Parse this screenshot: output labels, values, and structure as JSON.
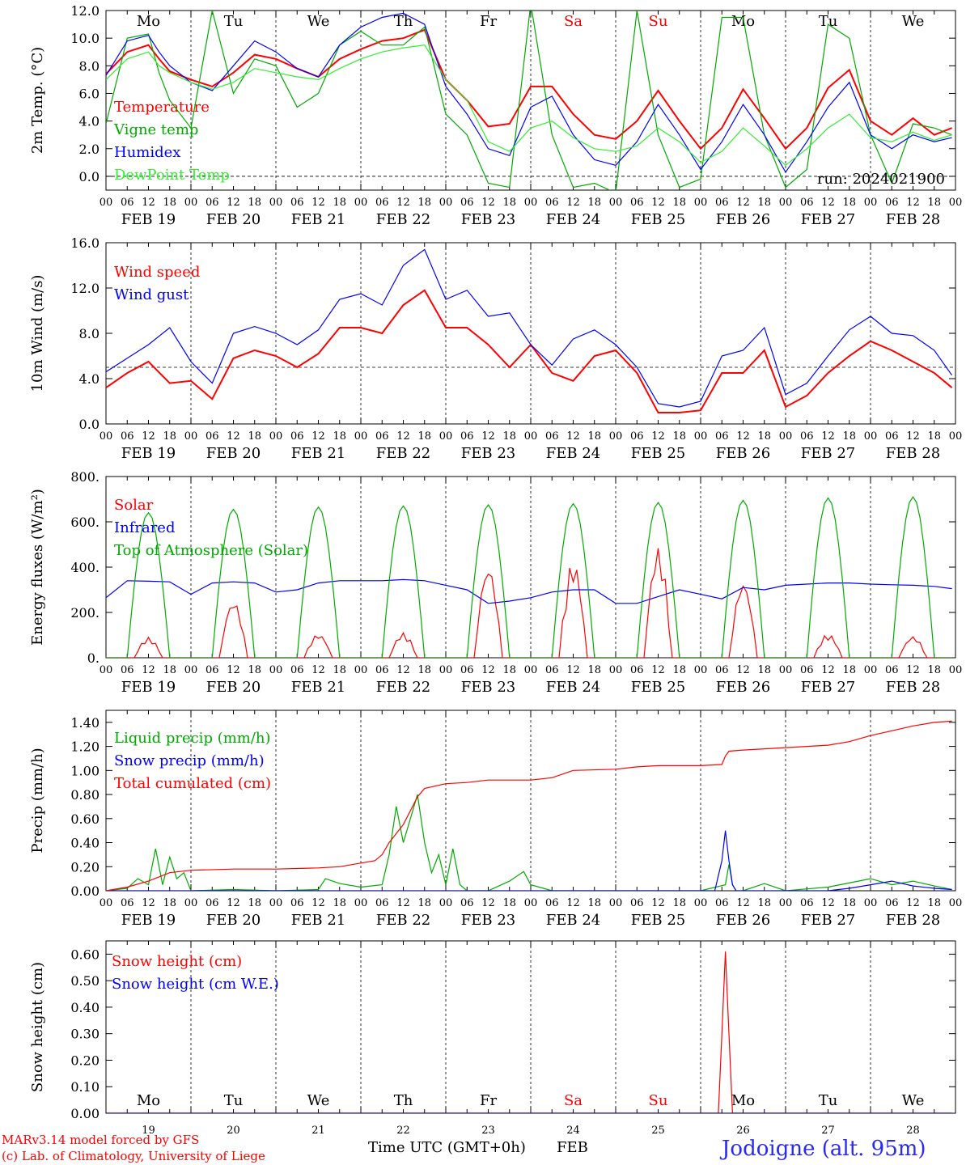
{
  "weekdays": [
    "Mo",
    "Tu",
    "We",
    "Th",
    "Fr",
    "Sa",
    "Su",
    "Mo",
    "Tu",
    "We"
  ],
  "weekday_colors": [
    "#000000",
    "#000000",
    "#000000",
    "#000000",
    "#000000",
    "#ff0000",
    "#ff0000",
    "#000000",
    "#000000",
    "#000000"
  ],
  "date_labels": [
    "FEB 19",
    "FEB 20",
    "FEB 21",
    "FEB 22",
    "FEB 23",
    "FEB 24",
    "FEB 25",
    "FEB 26",
    "FEB 27",
    "FEB 28"
  ],
  "day_numbers": [
    "19",
    "20",
    "21",
    "22",
    "23",
    "24",
    "25",
    "26",
    "27",
    "28"
  ],
  "hour_ticks": [
    "00",
    "06",
    "12",
    "18"
  ],
  "run_label": "run: 2024021900",
  "footer": {
    "model": "MARv3.14 model forced by GFS",
    "credit": "(c) Lab. of Climatology, University of Liege",
    "time_axis": "Time UTC (GMT+0h)",
    "month": "FEB",
    "location": "Jodoigne (alt. 95m)"
  },
  "chart_data": [
    {
      "type": "line",
      "ylabel": "2m Temp. (°C)",
      "ylim": [
        -1.0,
        12.0
      ],
      "yticks": [
        "0.0",
        "2.0",
        "4.0",
        "6.0",
        "8.0",
        "10.0",
        "12.0"
      ],
      "ref_line": 0,
      "x_unit": "hours since FEB 19 00 UTC",
      "series": [
        {
          "name": "Temperature",
          "color": "#ff0000",
          "x": [
            0,
            6,
            12,
            15,
            18,
            24,
            30,
            36,
            42,
            48,
            54,
            60,
            66,
            72,
            78,
            84,
            90,
            96,
            102,
            108,
            114,
            120,
            126,
            132,
            138,
            144,
            150,
            156,
            162,
            168,
            174,
            180,
            186,
            192,
            198,
            204,
            210,
            216,
            222,
            228,
            234,
            239
          ],
          "y": [
            7.4,
            9.0,
            9.5,
            8.5,
            7.6,
            7.0,
            6.5,
            7.5,
            8.8,
            8.5,
            7.8,
            7.2,
            8.5,
            9.2,
            9.8,
            10.0,
            10.6,
            7.0,
            5.5,
            3.6,
            3.8,
            6.5,
            6.5,
            4.5,
            3.0,
            2.7,
            4.0,
            6.2,
            4.0,
            2.0,
            3.5,
            6.3,
            4.2,
            2.0,
            3.5,
            6.4,
            7.7,
            4.0,
            3.0,
            4.2,
            3.0,
            3.5
          ]
        },
        {
          "name": "Vigne temp",
          "color": "#00aa00",
          "x": [
            0,
            6,
            12,
            15,
            18,
            24,
            30,
            36,
            42,
            48,
            54,
            60,
            66,
            72,
            78,
            84,
            90,
            96,
            102,
            108,
            114,
            120,
            126,
            132,
            138,
            144,
            150,
            156,
            162,
            168,
            174,
            180,
            186,
            192,
            198,
            204,
            210,
            216,
            222,
            228,
            234,
            239
          ],
          "y": [
            3.8,
            10.0,
            10.3,
            7.5,
            5.5,
            3.5,
            12.0,
            6.0,
            8.5,
            8.0,
            5.0,
            6.0,
            9.5,
            10.5,
            9.5,
            9.5,
            10.8,
            4.5,
            3.0,
            -0.5,
            -0.8,
            12.5,
            3.0,
            -0.8,
            -0.5,
            -1.2,
            12.0,
            3.0,
            -0.8,
            -0.2,
            11.5,
            11.5,
            3.0,
            -0.8,
            0.5,
            11.0,
            10.0,
            3.0,
            -0.5,
            3.8,
            3.5,
            3.0
          ]
        },
        {
          "name": "Humidex",
          "color": "#0000ff",
          "x": [
            0,
            6,
            12,
            15,
            18,
            24,
            30,
            36,
            42,
            48,
            54,
            60,
            66,
            72,
            78,
            84,
            90,
            96,
            102,
            108,
            114,
            120,
            126,
            132,
            138,
            144,
            150,
            156,
            162,
            168,
            174,
            180,
            186,
            192,
            198,
            204,
            210,
            216,
            222,
            228,
            234,
            239
          ],
          "y": [
            7.3,
            9.8,
            10.2,
            9.0,
            8.0,
            6.8,
            6.2,
            8.0,
            9.8,
            9.0,
            7.8,
            7.2,
            9.5,
            10.8,
            11.5,
            11.8,
            11.0,
            6.5,
            4.5,
            2.0,
            1.5,
            5.0,
            5.8,
            3.0,
            1.2,
            0.8,
            2.5,
            5.2,
            3.0,
            0.5,
            2.5,
            5.2,
            3.0,
            0.3,
            2.5,
            5.0,
            6.8,
            3.0,
            2.0,
            3.0,
            2.5,
            2.8
          ]
        },
        {
          "name": "DewPoint Temp",
          "color": "#33ee33",
          "x": [
            0,
            6,
            12,
            15,
            18,
            24,
            30,
            36,
            42,
            48,
            54,
            60,
            66,
            72,
            78,
            84,
            90,
            96,
            102,
            108,
            114,
            120,
            126,
            132,
            138,
            144,
            150,
            156,
            162,
            168,
            174,
            180,
            186,
            192,
            198,
            204,
            210,
            216,
            222,
            228,
            234,
            239
          ],
          "y": [
            7.0,
            8.5,
            9.0,
            8.0,
            7.5,
            6.8,
            6.3,
            6.8,
            7.8,
            7.5,
            7.2,
            7.0,
            7.8,
            8.5,
            9.0,
            9.3,
            9.5,
            7.0,
            5.5,
            2.5,
            1.8,
            3.5,
            4.0,
            2.8,
            2.0,
            1.8,
            2.2,
            3.5,
            2.5,
            1.0,
            1.8,
            3.5,
            2.2,
            0.8,
            2.0,
            3.5,
            4.5,
            2.8,
            2.5,
            3.2,
            2.6,
            3.0
          ]
        }
      ]
    },
    {
      "type": "line",
      "ylabel": "10m Wind (m/s)",
      "ylim": [
        0,
        16.0
      ],
      "yticks": [
        "0.0",
        "4.0",
        "8.0",
        "12.0",
        "16.0"
      ],
      "ref_line": 5,
      "x_unit": "hours since FEB 19 00 UTC",
      "series": [
        {
          "name": "Wind speed",
          "color": "#ff0000",
          "x": [
            0,
            6,
            12,
            18,
            24,
            30,
            36,
            42,
            48,
            54,
            60,
            66,
            72,
            78,
            84,
            90,
            96,
            102,
            108,
            114,
            120,
            126,
            132,
            138,
            144,
            150,
            156,
            162,
            168,
            174,
            180,
            186,
            192,
            198,
            204,
            210,
            216,
            222,
            228,
            234,
            239
          ],
          "y": [
            3.2,
            4.5,
            5.5,
            3.6,
            3.8,
            2.2,
            5.8,
            6.5,
            6.0,
            5.0,
            6.2,
            8.5,
            8.5,
            8.0,
            10.5,
            11.8,
            8.5,
            8.5,
            7.0,
            5.0,
            7.0,
            4.5,
            3.8,
            6.0,
            6.5,
            4.5,
            1.0,
            1.0,
            1.2,
            4.5,
            4.5,
            6.5,
            1.5,
            2.5,
            4.5,
            6.0,
            7.3,
            6.5,
            5.5,
            4.5,
            3.2
          ]
        },
        {
          "name": "Wind gust",
          "color": "#0000ff",
          "x": [
            0,
            6,
            12,
            18,
            24,
            30,
            36,
            42,
            48,
            54,
            60,
            66,
            72,
            78,
            84,
            90,
            96,
            102,
            108,
            114,
            120,
            126,
            132,
            138,
            144,
            150,
            156,
            162,
            168,
            174,
            180,
            186,
            192,
            198,
            204,
            210,
            216,
            222,
            228,
            234,
            239
          ],
          "y": [
            4.6,
            5.8,
            7.0,
            8.5,
            5.5,
            3.6,
            8.0,
            8.6,
            8.0,
            7.0,
            8.3,
            11.0,
            11.5,
            10.5,
            14.0,
            15.4,
            11.0,
            11.8,
            9.5,
            9.8,
            7.0,
            5.2,
            7.5,
            8.3,
            7.0,
            5.0,
            1.8,
            1.5,
            2.0,
            6.0,
            6.5,
            8.5,
            2.6,
            3.6,
            6.0,
            8.3,
            9.5,
            8.0,
            7.8,
            6.5,
            4.3
          ]
        }
      ]
    },
    {
      "type": "line",
      "ylabel": "Energy fluxes (W/m²)",
      "ylim": [
        0,
        800
      ],
      "yticks": [
        "0.",
        "200.",
        "400.",
        "600.",
        "800."
      ],
      "x_unit": "hours since FEB 19 00 UTC",
      "series": [
        {
          "name": "Solar",
          "color": "#ff0000",
          "days_peak": [
            90,
            255,
            105,
            110,
            410,
            430,
            490,
            340,
            105,
            95
          ]
        },
        {
          "name": "Infrared",
          "color": "#0000ff",
          "x": [
            0,
            6,
            12,
            18,
            24,
            30,
            36,
            42,
            48,
            54,
            60,
            66,
            72,
            78,
            84,
            90,
            96,
            102,
            108,
            114,
            120,
            126,
            132,
            138,
            144,
            150,
            156,
            162,
            168,
            174,
            180,
            186,
            192,
            198,
            204,
            210,
            216,
            222,
            228,
            234,
            239
          ],
          "y": [
            265,
            340,
            338,
            335,
            280,
            330,
            335,
            330,
            290,
            300,
            330,
            340,
            340,
            340,
            345,
            340,
            320,
            300,
            240,
            250,
            265,
            290,
            300,
            300,
            240,
            240,
            270,
            300,
            280,
            260,
            310,
            300,
            320,
            325,
            330,
            330,
            325,
            322,
            320,
            315,
            305
          ]
        },
        {
          "name": "Top of Atmosphere (Solar)",
          "color": "#00aa00",
          "days_peak": [
            640,
            655,
            665,
            670,
            675,
            680,
            685,
            695,
            705,
            710
          ]
        }
      ]
    },
    {
      "type": "line",
      "ylabel": "Precip (mm/h)",
      "ylim": [
        0,
        1.5
      ],
      "yticks": [
        "0.00",
        "0.20",
        "0.40",
        "0.60",
        "0.80",
        "1.00",
        "1.20",
        "1.40"
      ],
      "x_unit": "hours since FEB 19 00 UTC",
      "series": [
        {
          "name": "Liquid precip (mm/h)",
          "color": "#00aa00",
          "x": [
            0,
            6,
            9,
            12,
            14,
            16,
            18,
            20,
            22,
            24,
            36,
            48,
            60,
            62,
            66,
            72,
            78,
            80,
            82,
            84,
            86,
            88,
            90,
            92,
            94,
            96,
            98,
            100,
            102,
            104,
            108,
            114,
            118,
            120,
            126,
            132,
            150,
            168,
            175,
            176,
            177,
            178,
            180,
            186,
            192,
            204,
            216,
            222,
            228,
            234,
            239
          ],
          "y": [
            0.0,
            0.02,
            0.1,
            0.05,
            0.35,
            0.05,
            0.28,
            0.1,
            0.15,
            0.0,
            0.01,
            0.0,
            0.01,
            0.1,
            0.06,
            0.03,
            0.05,
            0.3,
            0.7,
            0.4,
            0.6,
            0.8,
            0.4,
            0.15,
            0.3,
            0.05,
            0.35,
            0.05,
            0.0,
            0.0,
            0.0,
            0.08,
            0.16,
            0.05,
            0.0,
            0.0,
            0.0,
            0.0,
            0.05,
            0.22,
            0.05,
            0.0,
            0.0,
            0.06,
            0.0,
            0.03,
            0.1,
            0.05,
            0.08,
            0.04,
            0.01
          ]
        },
        {
          "name": "Snow precip (mm/h)",
          "color": "#0000ff",
          "x": [
            0,
            172,
            174,
            175,
            176,
            177,
            178,
            180,
            204,
            210,
            216,
            222,
            228,
            234,
            239
          ],
          "y": [
            0.0,
            0.0,
            0.25,
            0.5,
            0.25,
            0.05,
            0.0,
            0.0,
            0.0,
            0.02,
            0.05,
            0.08,
            0.04,
            0.02,
            0.01
          ]
        },
        {
          "name": "Total cumulated (cm)",
          "color": "#ff0000",
          "x": [
            0,
            6,
            12,
            18,
            24,
            36,
            48,
            60,
            66,
            72,
            76,
            78,
            80,
            84,
            88,
            90,
            96,
            102,
            108,
            114,
            120,
            126,
            132,
            144,
            150,
            156,
            168,
            174,
            175,
            176,
            180,
            192,
            204,
            210,
            216,
            222,
            228,
            234,
            239
          ],
          "y": [
            0.0,
            0.03,
            0.08,
            0.15,
            0.17,
            0.18,
            0.18,
            0.19,
            0.2,
            0.23,
            0.25,
            0.3,
            0.4,
            0.55,
            0.78,
            0.85,
            0.89,
            0.9,
            0.92,
            0.92,
            0.92,
            0.94,
            1.0,
            1.01,
            1.03,
            1.04,
            1.04,
            1.05,
            1.12,
            1.16,
            1.17,
            1.19,
            1.21,
            1.24,
            1.29,
            1.33,
            1.37,
            1.4,
            1.41
          ]
        }
      ]
    },
    {
      "type": "line",
      "ylabel": "Snow height (cm)",
      "ylim": [
        0,
        0.65
      ],
      "yticks": [
        "0.00",
        "0.10",
        "0.20",
        "0.30",
        "0.40",
        "0.50",
        "0.60"
      ],
      "x_unit": "hours since FEB 19 00 UTC",
      "series": [
        {
          "name": "Snow height (cm)",
          "color": "#ff0000",
          "x": [
            0,
            173,
            174,
            175,
            176,
            177,
            239
          ],
          "y": [
            0,
            0,
            0.3,
            0.61,
            0.3,
            0,
            0
          ]
        },
        {
          "name": "Snow height (cm W.E.)",
          "color": "#0000ff",
          "x": [
            0,
            239
          ],
          "y": [
            0,
            0
          ]
        }
      ]
    }
  ]
}
